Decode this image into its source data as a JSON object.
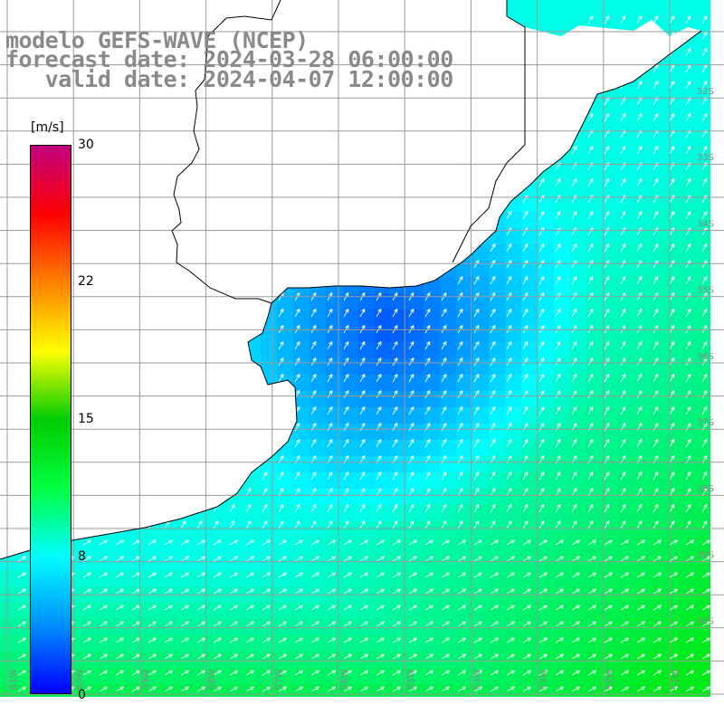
{
  "title": {
    "line1": "modelo GEFS-WAVE (NCEP)",
    "line2": "forecast date: 2024-03-28 06:00:00",
    "line3": "   valid date: 2024-04-07 12:00:00"
  },
  "colorbar": {
    "unit": "[m/s]",
    "ticks": [
      "30",
      "22",
      "15",
      "8",
      "0"
    ],
    "stops": [
      "#0000ff",
      "#0090ff",
      "#00ffff",
      "#00ff40",
      "#00cc00",
      "#ffff00",
      "#ff8000",
      "#ff0000",
      "#c00080"
    ]
  },
  "map": {
    "lat_labels": [
      "32S",
      "33S",
      "34S",
      "35S",
      "36S",
      "37S",
      "38S",
      "39S",
      "40S"
    ],
    "lon_labels": [
      "61W",
      "60W",
      "59W",
      "58W",
      "57W",
      "56W",
      "55W",
      "54W",
      "53W",
      "52W",
      "51W"
    ],
    "colors": {
      "land": "#ffffff",
      "grid": "#9a9a9a",
      "coast": "#000000",
      "arrow": "#ffffff"
    }
  }
}
